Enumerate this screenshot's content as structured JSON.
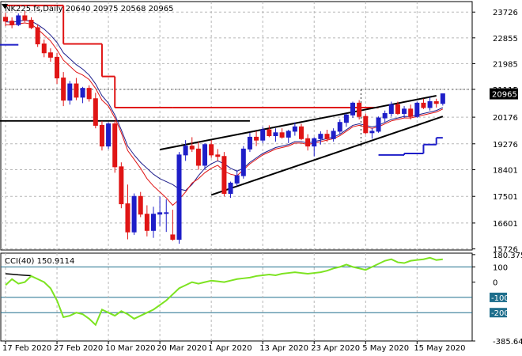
{
  "header": {
    "symbol_label": "NK225.fs,Daily",
    "ohlc": "20640 20975 20568 20965",
    "cci_label": "CCI(40) 150.9114"
  },
  "colors": {
    "background": "#ffffff",
    "grid": "#b7b7b7",
    "bull": "#1e1ec8",
    "bear": "#e01515",
    "ema": "#e01515",
    "sma": "#1f1f8c",
    "stop": "#e01515",
    "cci": "#7de321",
    "cci_level": "#1e6e8c",
    "trend": "#000000",
    "last_price_bg": "#000000",
    "last_price_text": "#ffffff"
  },
  "chart_data": [
    {
      "type": "candlestick",
      "title": "NK225.fs,Daily",
      "ohlc_header": "20640 20975 20568 20965",
      "y_ticks": [
        "23726",
        "22855",
        "21985",
        "21115",
        "20176",
        "19276",
        "18401",
        "17501",
        "16601",
        "15726"
      ],
      "y_tick_values": [
        23726,
        22855,
        21985,
        21115,
        20176,
        19276,
        18401,
        17501,
        16601,
        15726
      ],
      "ylim": [
        15690,
        24080
      ],
      "last_price_label": "20965",
      "x_ticks": [
        "17 Feb 2020",
        "27 Feb 2020",
        "10 Mar 2020",
        "20 Mar 2020",
        "1 Apr 2020",
        "13 Apr 2020",
        "23 Apr 2020",
        "5 May 2020",
        "15 May 2020"
      ],
      "x_tick_index": [
        0,
        8,
        16,
        24,
        32,
        40,
        48,
        56,
        64
      ],
      "candles": [
        [
          23550,
          23700,
          23250,
          23420
        ],
        [
          23420,
          23550,
          23180,
          23300
        ],
        [
          23300,
          23680,
          23250,
          23600
        ],
        [
          23600,
          23760,
          23380,
          23450
        ],
        [
          23450,
          23550,
          23150,
          23200
        ],
        [
          23200,
          23300,
          22550,
          22650
        ],
        [
          22650,
          22800,
          22200,
          22350
        ],
        [
          22350,
          22500,
          22050,
          22200
        ],
        [
          22200,
          22350,
          21300,
          21500
        ],
        [
          21500,
          21700,
          20550,
          20750
        ],
        [
          20750,
          21400,
          20600,
          21300
        ],
        [
          21300,
          21500,
          20750,
          20850
        ],
        [
          20850,
          21200,
          20650,
          21150
        ],
        [
          21150,
          21250,
          20700,
          20800
        ],
        [
          20800,
          21000,
          19800,
          19900
        ],
        [
          19900,
          20050,
          19050,
          19200
        ],
        [
          19200,
          20000,
          19100,
          19950
        ],
        [
          19950,
          20050,
          18300,
          18500
        ],
        [
          18500,
          18650,
          17100,
          17250
        ],
        [
          17250,
          17900,
          16050,
          16300
        ],
        [
          16300,
          17600,
          16200,
          17500
        ],
        [
          17500,
          17650,
          16800,
          16900
        ],
        [
          16900,
          17200,
          16150,
          16350
        ],
        [
          16350,
          17150,
          16100,
          16900
        ],
        [
          16900,
          17500,
          16500,
          16950
        ],
        [
          16950,
          17400,
          16300,
          16950
        ],
        [
          16200,
          17050,
          16000,
          16050
        ],
        [
          16050,
          19000,
          15900,
          18900
        ],
        [
          18900,
          19400,
          18700,
          19200
        ],
        [
          19200,
          19500,
          19000,
          19100
        ],
        [
          19100,
          19350,
          18400,
          18550
        ],
        [
          18550,
          19300,
          18400,
          19250
        ],
        [
          19250,
          19400,
          18800,
          18900
        ],
        [
          18900,
          19100,
          18700,
          18850
        ],
        [
          18850,
          19000,
          17500,
          17600
        ],
        [
          17600,
          18000,
          17450,
          17950
        ],
        [
          17950,
          18400,
          17850,
          18200
        ],
        [
          18200,
          19200,
          18100,
          19100
        ],
        [
          19100,
          19650,
          19000,
          19500
        ],
        [
          19500,
          19700,
          19200,
          19400
        ],
        [
          19400,
          19850,
          19300,
          19750
        ],
        [
          19750,
          19900,
          19500,
          19550
        ],
        [
          19550,
          19800,
          19350,
          19650
        ],
        [
          19650,
          19800,
          19450,
          19500
        ],
        [
          19500,
          19750,
          19300,
          19700
        ],
        [
          19700,
          20000,
          19550,
          19850
        ],
        [
          19850,
          19950,
          19400,
          19450
        ],
        [
          19450,
          19600,
          19050,
          19200
        ],
        [
          19200,
          19500,
          18850,
          19450
        ],
        [
          19450,
          19700,
          19250,
          19600
        ],
        [
          19600,
          19750,
          19350,
          19450
        ],
        [
          19450,
          19800,
          19350,
          19700
        ],
        [
          19700,
          20100,
          19600,
          20000
        ],
        [
          20000,
          20300,
          19850,
          20250
        ],
        [
          20250,
          20700,
          20150,
          20650
        ],
        [
          20650,
          20750,
          20100,
          20200
        ],
        [
          20200,
          20300,
          19600,
          19650
        ],
        [
          19650,
          19800,
          19450,
          19700
        ],
        [
          19700,
          20200,
          19650,
          20150
        ],
        [
          20150,
          20400,
          20000,
          20300
        ],
        [
          20300,
          20700,
          20200,
          20600
        ],
        [
          20600,
          20700,
          20250,
          20300
        ],
        [
          20300,
          20550,
          20150,
          20450
        ],
        [
          20450,
          20600,
          20100,
          20200
        ],
        [
          20200,
          20700,
          20150,
          20650
        ],
        [
          20650,
          20800,
          20450,
          20500
        ],
        [
          20500,
          20850,
          20400,
          20700
        ],
        [
          20700,
          20800,
          20500,
          20640
        ],
        [
          20640,
          20975,
          20568,
          20965
        ]
      ],
      "ema_line": [
        23300,
        23290,
        23330,
        23360,
        23320,
        23150,
        22950,
        22750,
        22450,
        22100,
        21900,
        21700,
        21600,
        21450,
        21150,
        20750,
        20550,
        20150,
        19650,
        19050,
        18750,
        18450,
        18100,
        17850,
        17650,
        17450,
        17200,
        17400,
        17650,
        17950,
        18100,
        18300,
        18450,
        18550,
        18350,
        18250,
        18200,
        18400,
        18600,
        18750,
        18900,
        19000,
        19100,
        19150,
        19200,
        19300,
        19300,
        19250,
        19300,
        19350,
        19400,
        19450,
        19550,
        19700,
        19850,
        19900,
        19850,
        19800,
        19850,
        19950,
        20050,
        20100,
        20150,
        20150,
        20200,
        20250,
        20300,
        20350,
        20450
      ],
      "sma_line": [
        23400,
        23380,
        23420,
        23450,
        23420,
        23300,
        23150,
        22950,
        22700,
        22350,
        22150,
        21950,
        21800,
        21600,
        21300,
        20900,
        20650,
        20250,
        19750,
        19200,
        18900,
        18650,
        18450,
        18250,
        18100,
        18000,
        17900,
        17750,
        17700,
        17900,
        18200,
        18450,
        18600,
        18700,
        18600,
        18450,
        18350,
        18450,
        18650,
        18800,
        18950,
        19050,
        19150,
        19200,
        19250,
        19350,
        19350,
        19300,
        19350,
        19400,
        19450,
        19500,
        19600,
        19750,
        19900,
        19950,
        19900,
        19850,
        19900,
        20000,
        20100,
        20150,
        20200,
        20200,
        20250,
        20300,
        20350,
        20400,
        20500
      ],
      "stop_line_left": [
        {
          "from": 0,
          "to": 9,
          "value": 23950
        },
        {
          "from": 9,
          "to": 15,
          "value": 22650
        },
        {
          "from": 15,
          "to": 17,
          "value": 21550
        },
        {
          "from": 17,
          "to": 26,
          "value": 20500
        },
        {
          "from": 26,
          "to": 58,
          "value": 20500
        }
      ],
      "blue_support_segment": [
        {
          "from": -1,
          "to": 2,
          "value": 22620
        }
      ],
      "blue_trailing_stop": [
        {
          "from": 58,
          "to": 62,
          "value": 18900
        },
        {
          "from": 62,
          "to": 65,
          "value": 18950
        },
        {
          "from": 65,
          "to": 67,
          "value": 19250
        },
        {
          "from": 67,
          "to": 68,
          "value": 19480
        }
      ],
      "horizontal_support": {
        "value": 20050,
        "from": -1,
        "to": 38
      },
      "trendlines": [
        {
          "from": [
            24,
            19080
          ],
          "to": [
            67,
            20900
          ]
        },
        {
          "from": [
            32,
            17550
          ],
          "to": [
            68,
            20200
          ]
        }
      ],
      "dotted_verticals": [
        57
      ],
      "dotted_horizontals": [
        21115
      ]
    },
    {
      "type": "line",
      "title": "CCI(40) 150.9114",
      "y_ticks": [
        "180.3754",
        "100",
        "0",
        "-100",
        "-200",
        "-385.640"
      ],
      "y_tick_values": [
        180.3754,
        100,
        0,
        -100,
        -200,
        -385.64
      ],
      "ylim": [
        -385.64,
        190
      ],
      "levels": [
        100,
        -100,
        -200
      ],
      "marker_labels": [
        "100",
        "-100",
        "-200"
      ],
      "black_segment": [
        [
          0,
          55
        ],
        [
          1,
          52
        ],
        [
          2,
          48
        ],
        [
          3,
          45
        ],
        [
          4,
          42
        ]
      ],
      "values": [
        -20,
        20,
        -10,
        0,
        40,
        20,
        0,
        -40,
        -120,
        -230,
        -220,
        -200,
        -210,
        -240,
        -280,
        -180,
        -200,
        -220,
        -190,
        -210,
        -240,
        -220,
        -200,
        -180,
        -150,
        -120,
        -80,
        -40,
        -20,
        0,
        -10,
        0,
        10,
        5,
        0,
        10,
        20,
        25,
        30,
        40,
        45,
        50,
        45,
        55,
        60,
        65,
        60,
        55,
        60,
        65,
        75,
        90,
        100,
        115,
        100,
        90,
        80,
        100,
        120,
        140,
        150,
        130,
        125,
        140,
        145,
        150,
        160,
        145,
        150
      ]
    }
  ]
}
